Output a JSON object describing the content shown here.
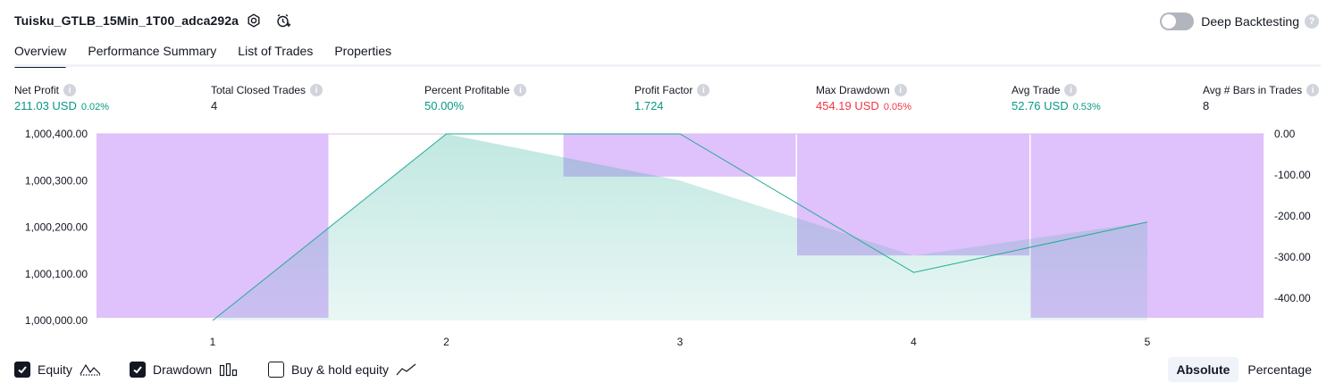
{
  "header": {
    "strategy_title": "Tuisku_GTLB_15Min_1T00_adca292a",
    "settings_icon": "gear-icon",
    "add_alert_icon": "alarm-clock-plus-icon",
    "deep_backtesting_label": "Deep Backtesting",
    "deep_backtesting_enabled": false,
    "help_glyph": "?"
  },
  "tabs": [
    {
      "label": "Overview",
      "active": true
    },
    {
      "label": "Performance Summary",
      "active": false
    },
    {
      "label": "List of Trades",
      "active": false
    },
    {
      "label": "Properties",
      "active": false
    }
  ],
  "metrics": [
    {
      "label": "Net Profit",
      "value": "211.03 USD",
      "pct": "0.02%",
      "color": "#089981"
    },
    {
      "label": "Total Closed Trades",
      "value": "4",
      "pct": "",
      "color": "#131722"
    },
    {
      "label": "Percent Profitable",
      "value": "50.00%",
      "pct": "",
      "color": "#089981"
    },
    {
      "label": "Profit Factor",
      "value": "1.724",
      "pct": "",
      "color": "#089981"
    },
    {
      "label": "Max Drawdown",
      "value": "454.19 USD",
      "pct": "0.05%",
      "color": "#f23645"
    },
    {
      "label": "Avg Trade",
      "value": "52.76 USD",
      "pct": "0.53%",
      "color": "#089981"
    },
    {
      "label": "Avg # Bars in Trades",
      "value": "8",
      "pct": "",
      "color": "#131722"
    }
  ],
  "info_glyph": "i",
  "chart_data": {
    "type": "area",
    "x": [
      1,
      2,
      3,
      4,
      5
    ],
    "left_axis": {
      "ticks": [
        "1,000,400.00",
        "1,000,300.00",
        "1,000,200.00",
        "1,000,100.00",
        "1,000,000.00"
      ],
      "values": [
        1000400,
        1000300,
        1000200,
        1000100,
        1000000
      ]
    },
    "right_axis": {
      "ticks": [
        "0.00",
        "-100.00",
        "-200.00",
        "-300.00",
        "-400.00"
      ],
      "values": [
        0,
        -100,
        -200,
        -300,
        -400
      ]
    },
    "equity": {
      "name": "Equity",
      "values": [
        1000000,
        1000400,
        1000400,
        1000103,
        1000211
      ],
      "color": "#22ab94"
    },
    "equity_fill_area": {
      "values": [
        1000000,
        1000400,
        1000300,
        1000139,
        1000211
      ],
      "color": "#22ab94"
    },
    "drawdown": {
      "name": "Drawdown",
      "values": [
        -448,
        0,
        -104,
        -296,
        -448
      ],
      "color": "#ce93d8"
    },
    "xlabel": "",
    "ylabel": ""
  },
  "legend": {
    "items": [
      {
        "label": "Equity",
        "checked": true,
        "glyph": "equity-line-icon"
      },
      {
        "label": "Drawdown",
        "checked": true,
        "glyph": "drawdown-bars-icon"
      },
      {
        "label": "Buy & hold equity",
        "checked": false,
        "glyph": "buy-hold-line-icon"
      }
    ],
    "modes": [
      {
        "label": "Absolute",
        "active": true
      },
      {
        "label": "Percentage",
        "active": false
      }
    ]
  }
}
